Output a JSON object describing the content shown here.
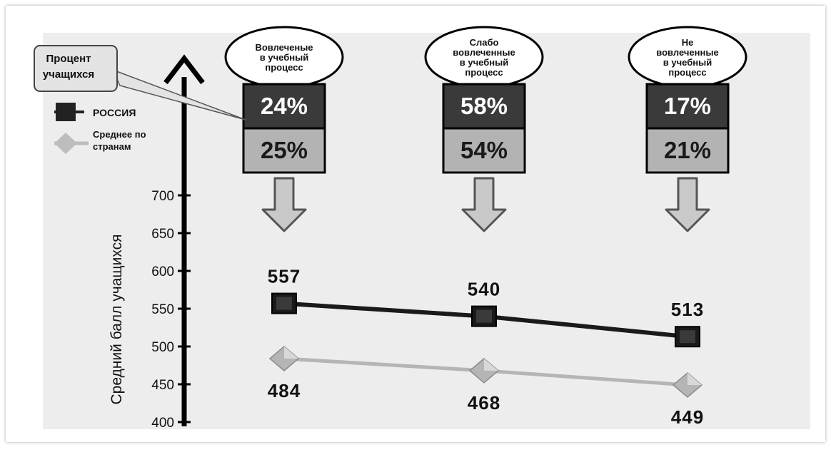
{
  "chart_data": {
    "type": "line",
    "title": "",
    "xlabel": "",
    "ylabel": "Средний балл учащихся",
    "ylim": [
      400,
      700
    ],
    "yticks": [
      400,
      450,
      500,
      550,
      600,
      650,
      700
    ],
    "categories": [
      "Вовлеченые в учебный процесс",
      "Слабо вовлеченные в учебный процесс",
      "Не вовлеченные в учебный процесс"
    ],
    "category_lines": [
      [
        "Вовлеченые",
        "в учебный",
        "процесс"
      ],
      [
        "Слабо",
        "вовлеченные",
        "в учебный",
        "процесс"
      ],
      [
        "Не",
        "вовлеченные",
        "в учебный",
        "процесс"
      ]
    ],
    "series": [
      {
        "name": "РОССИЯ",
        "values": [
          557,
          540,
          513
        ],
        "color": "#1a1a1a",
        "marker": "square",
        "shares": [
          "24%",
          "58%",
          "17%"
        ],
        "box_color": "#3a3a3a"
      },
      {
        "name": "Среднее по странам",
        "values": [
          484,
          468,
          449
        ],
        "color": "#b5b5b5",
        "marker": "diamond",
        "shares": [
          "25%",
          "54%",
          "21%"
        ],
        "box_color": "#b3b3b3"
      }
    ],
    "callout": [
      "Процент",
      "учащихся"
    ],
    "legend_lines": [
      [
        "РОССИЯ"
      ],
      [
        "Среднее по",
        "странам"
      ]
    ],
    "grid": false,
    "legend_position": "left"
  }
}
